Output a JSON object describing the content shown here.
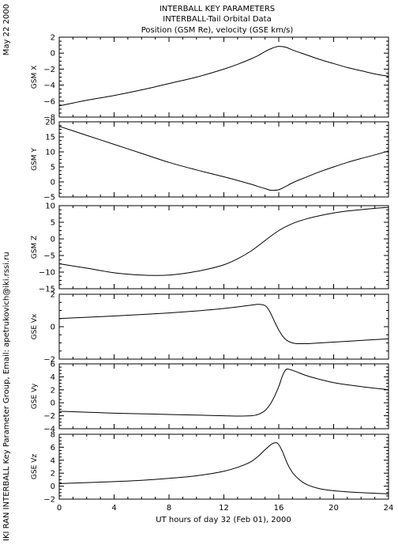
{
  "header": {
    "line1": "INTERBALL KEY PARAMETERS",
    "line2": "INTERBALL-Tail Orbital Data",
    "line3": "Position (GSM Re), velocity (GSE km/s)"
  },
  "side": {
    "date": "May 22 2000",
    "credit": "IKI RAN INTERBALL Key Parameter Group, Email: apetrukovich@iki.rssi.ru"
  },
  "chart_data": {
    "type": "line",
    "xlabel": "UT hours of day  32 (Feb 01), 2000",
    "xlim": [
      0,
      24
    ],
    "xticks": [
      0,
      4,
      8,
      12,
      16,
      20,
      24
    ],
    "panels": [
      {
        "ylabel": "GSM X",
        "ylim": [
          -8,
          2
        ],
        "yticks": [
          -8,
          -6,
          -4,
          -2,
          0,
          2
        ],
        "x": [
          0,
          2,
          4,
          6,
          8,
          10,
          12,
          13,
          14,
          14.5,
          15,
          15.5,
          16,
          16.5,
          17,
          18,
          19,
          20,
          21,
          22,
          23,
          24
        ],
        "y": [
          -6.6,
          -5.9,
          -5.3,
          -4.6,
          -3.8,
          -3.0,
          -2.0,
          -1.4,
          -0.7,
          -0.3,
          0.2,
          0.6,
          0.85,
          0.75,
          0.4,
          -0.2,
          -0.8,
          -1.3,
          -1.8,
          -2.2,
          -2.6,
          -2.9
        ]
      },
      {
        "ylabel": "GSM Y",
        "ylim": [
          -5,
          20
        ],
        "yticks": [
          -5,
          0,
          5,
          10,
          15,
          20
        ],
        "x": [
          0,
          2,
          4,
          6,
          8,
          10,
          12,
          13,
          14,
          15,
          15.5,
          16,
          16.5,
          17,
          18,
          19,
          20,
          21,
          22,
          23,
          24
        ],
        "y": [
          18.5,
          15.5,
          12.5,
          9.5,
          6.5,
          4.0,
          1.7,
          0.5,
          -0.8,
          -2.2,
          -2.8,
          -2.6,
          -1.5,
          -0.3,
          1.6,
          3.4,
          5.0,
          6.5,
          7.8,
          9.0,
          10.3
        ]
      },
      {
        "ylabel": "GSM Z",
        "ylim": [
          -15,
          10
        ],
        "yticks": [
          -15,
          -10,
          -5,
          0,
          5,
          10
        ],
        "x": [
          0,
          2,
          4,
          6,
          7,
          8,
          10,
          12,
          13,
          14,
          15,
          16,
          17,
          18,
          19,
          20,
          21,
          22,
          23,
          24
        ],
        "y": [
          -7.5,
          -8.8,
          -10.2,
          -10.9,
          -11.0,
          -10.9,
          -9.8,
          -7.8,
          -6.0,
          -3.6,
          -0.5,
          2.5,
          4.6,
          6.0,
          7.0,
          7.8,
          8.4,
          8.8,
          9.2,
          9.5
        ]
      },
      {
        "ylabel": "GSE Vx",
        "ylim": [
          -2,
          2
        ],
        "yticks": [
          -2,
          0,
          2
        ],
        "x": [
          0,
          2,
          4,
          6,
          8,
          10,
          12,
          13,
          14,
          14.5,
          15,
          15.3,
          15.7,
          16,
          16.3,
          16.6,
          17,
          17.5,
          18,
          19,
          20,
          22,
          24
        ],
        "y": [
          0.5,
          0.58,
          0.66,
          0.75,
          0.85,
          0.97,
          1.12,
          1.22,
          1.33,
          1.38,
          1.3,
          1.0,
          0.3,
          -0.2,
          -0.6,
          -0.85,
          -1.0,
          -1.05,
          -1.05,
          -1.0,
          -0.95,
          -0.85,
          -0.75
        ]
      },
      {
        "ylabel": "GSE Vy",
        "ylim": [
          -4,
          6
        ],
        "yticks": [
          -4,
          -2,
          0,
          2,
          4,
          6
        ],
        "x": [
          0,
          2,
          4,
          6,
          8,
          10,
          12,
          13,
          14,
          14.5,
          15,
          15.5,
          16,
          16.3,
          16.6,
          17,
          17.5,
          18,
          19,
          20,
          22,
          24
        ],
        "y": [
          -1.3,
          -1.45,
          -1.6,
          -1.7,
          -1.8,
          -1.9,
          -2.0,
          -2.05,
          -2.0,
          -1.8,
          -1.2,
          0.2,
          2.5,
          4.3,
          5.2,
          5.0,
          4.6,
          4.2,
          3.6,
          3.1,
          2.5,
          2.0
        ]
      },
      {
        "ylabel": "GSE Vz",
        "ylim": [
          -2,
          8
        ],
        "yticks": [
          -2,
          0,
          2,
          4,
          6,
          8
        ],
        "x": [
          0,
          2,
          4,
          6,
          8,
          10,
          12,
          13,
          14,
          14.5,
          15,
          15.5,
          15.8,
          16,
          16.3,
          16.6,
          17,
          17.5,
          18,
          19,
          20,
          22,
          24
        ],
        "y": [
          0.4,
          0.55,
          0.7,
          0.9,
          1.2,
          1.6,
          2.3,
          2.9,
          3.8,
          4.6,
          5.6,
          6.5,
          6.7,
          6.4,
          5.2,
          3.6,
          2.1,
          1.0,
          0.3,
          -0.4,
          -0.7,
          -1.0,
          -1.2
        ]
      }
    ]
  }
}
